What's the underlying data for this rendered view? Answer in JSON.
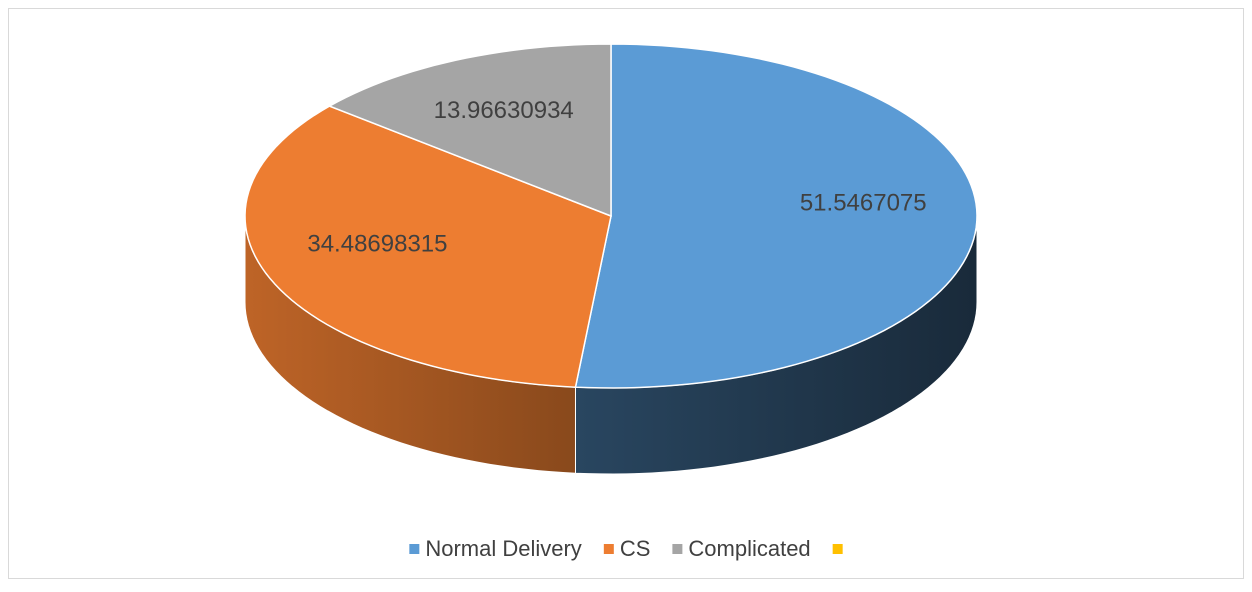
{
  "chart_data": {
    "type": "pie",
    "three_d": true,
    "categories": [
      "Normal Delivery",
      "CS",
      "Complicated",
      null
    ],
    "values": [
      51.5467075,
      34.48698315,
      13.96630934,
      0
    ],
    "colors": [
      "#5b9bd5",
      "#ed7d31",
      "#a5a5a5",
      "#ffc000"
    ],
    "start_angle": 0,
    "direction": "clockwise",
    "legend": "bottom"
  }
}
